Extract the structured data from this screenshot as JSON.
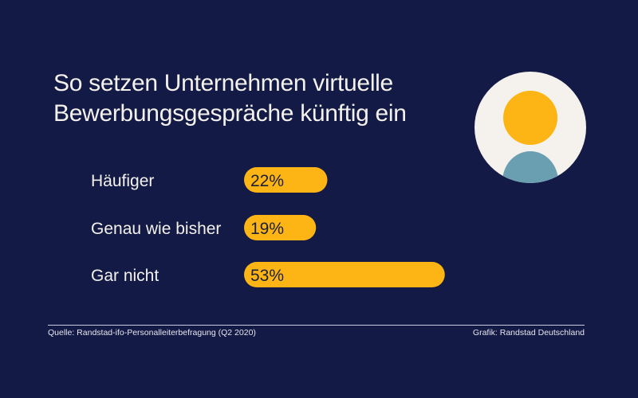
{
  "header": {
    "title_line1": "So setzen Unternehmen virtuelle",
    "title_line2": "Bewerbungsgespräche künftig ein"
  },
  "footer": {
    "source": "Quelle: Randstad-ifo-Personalleiterbefragung (Q2 2020)",
    "credit": "Grafik: Randstad Deutschland"
  },
  "colors": {
    "background": "#121a45",
    "bar": "#fdb515",
    "text": "#f4f1ec",
    "avatar_bg": "#f5f1ec",
    "avatar_head": "#fdb515",
    "avatar_body": "#6a9fb1"
  },
  "icons": {
    "avatar": "person-avatar-icon"
  },
  "chart_data": {
    "type": "bar",
    "orientation": "horizontal",
    "title": "So setzen Unternehmen virtuelle Bewerbungsgespräche künftig ein",
    "categories": [
      "Häufiger",
      "Genau wie bisher",
      "Gar nicht"
    ],
    "values": [
      22,
      19,
      53
    ],
    "value_labels": [
      "22%",
      "19%",
      "53%"
    ],
    "unit": "%",
    "xlabel": "",
    "ylabel": "",
    "xlim": [
      0,
      100
    ],
    "grid": false,
    "legend": "none"
  }
}
